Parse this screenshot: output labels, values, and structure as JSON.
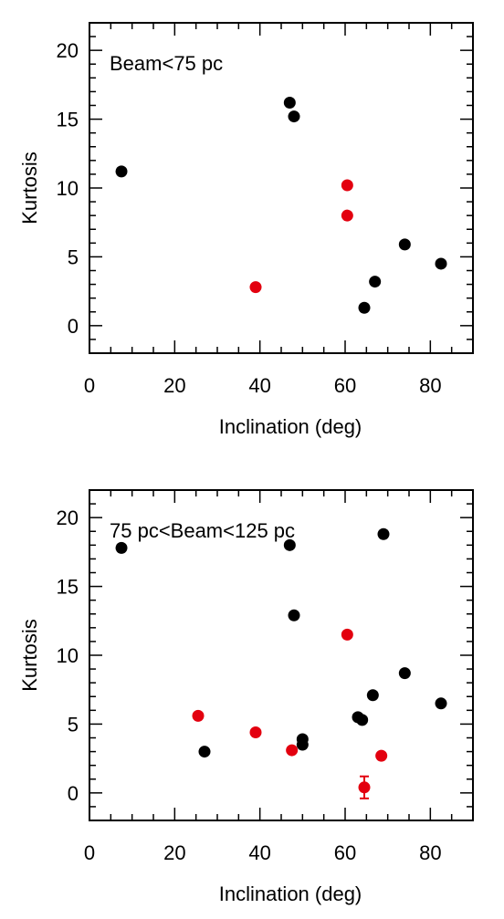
{
  "chart_data": [
    {
      "type": "scatter",
      "annotation": "Beam<75 pc",
      "xlabel": "Inclination (deg)",
      "ylabel": "Kurtosis",
      "xlim": [
        0,
        90
      ],
      "ylim": [
        -2,
        22
      ],
      "xticks": [
        0,
        20,
        40,
        60,
        80
      ],
      "yticks": [
        0,
        5,
        10,
        15,
        20
      ],
      "grid": false,
      "series": [
        {
          "color": "#000000",
          "points": [
            {
              "x": 7.5,
              "y": 11.2
            },
            {
              "x": 47.0,
              "y": 16.2
            },
            {
              "x": 48.0,
              "y": 15.2
            },
            {
              "x": 64.5,
              "y": 1.3
            },
            {
              "x": 67.0,
              "y": 3.2
            },
            {
              "x": 74.0,
              "y": 5.9
            },
            {
              "x": 82.5,
              "y": 4.5
            }
          ]
        },
        {
          "color": "#e3000f",
          "points": [
            {
              "x": 39.0,
              "y": 2.8
            },
            {
              "x": 60.5,
              "y": 10.2
            },
            {
              "x": 60.5,
              "y": 8.0
            }
          ]
        }
      ]
    },
    {
      "type": "scatter",
      "annotation": "75 pc<Beam<125 pc",
      "xlabel": "Inclination (deg)",
      "ylabel": "Kurtosis",
      "xlim": [
        0,
        90
      ],
      "ylim": [
        -2,
        22
      ],
      "xticks": [
        0,
        20,
        40,
        60,
        80
      ],
      "yticks": [
        0,
        5,
        10,
        15,
        20
      ],
      "grid": false,
      "series": [
        {
          "color": "#000000",
          "points": [
            {
              "x": 7.5,
              "y": 17.8
            },
            {
              "x": 27.0,
              "y": 3.0
            },
            {
              "x": 47.0,
              "y": 18.0
            },
            {
              "x": 48.0,
              "y": 12.9
            },
            {
              "x": 50.0,
              "y": 3.5
            },
            {
              "x": 50.0,
              "y": 3.9
            },
            {
              "x": 63.0,
              "y": 5.5
            },
            {
              "x": 64.0,
              "y": 5.3
            },
            {
              "x": 66.5,
              "y": 7.1
            },
            {
              "x": 69.0,
              "y": 18.8
            },
            {
              "x": 74.0,
              "y": 8.7
            },
            {
              "x": 82.5,
              "y": 6.5
            }
          ]
        },
        {
          "color": "#e3000f",
          "points": [
            {
              "x": 25.5,
              "y": 5.6
            },
            {
              "x": 39.0,
              "y": 4.4
            },
            {
              "x": 47.5,
              "y": 3.1
            },
            {
              "x": 60.5,
              "y": 11.5
            },
            {
              "x": 64.5,
              "y": 0.4,
              "yerr": 0.8
            },
            {
              "x": 68.5,
              "y": 2.7
            }
          ]
        }
      ]
    }
  ]
}
